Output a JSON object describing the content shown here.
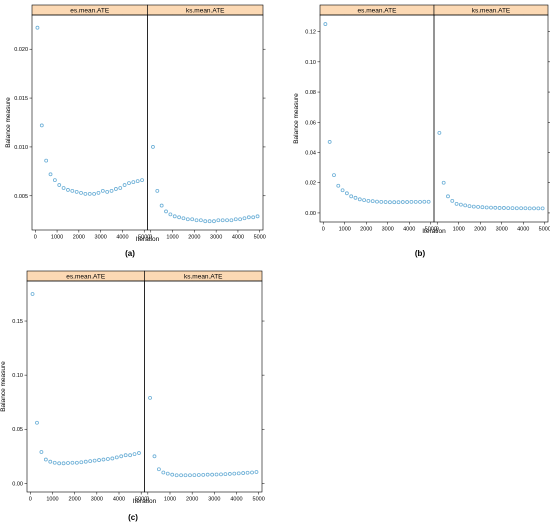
{
  "figure": {
    "panel_labels": [
      "(a)",
      "(b)",
      "(c)"
    ],
    "colors": {
      "points": "#6aaed6",
      "strip_bg": "#fcd9b4",
      "frame": "#000000"
    }
  },
  "chart_data": [
    {
      "type": "scatter",
      "panel": "(a)",
      "xlabel": "Iteration",
      "ylabel": "Balance measure",
      "xlim": [
        -150,
        5150
      ],
      "ylim": [
        0.0015,
        0.0235
      ],
      "x_ticks": [
        0,
        1000,
        2000,
        3000,
        4000,
        5000
      ],
      "y_ticks": [
        0.005,
        0.01,
        0.015,
        0.02
      ],
      "y_tick_labels": [
        "0.005",
        "0.010",
        "0.015",
        "0.020"
      ],
      "grid": false,
      "facets": [
        {
          "strip": "es.mean.ATE",
          "x": [
            100,
            300,
            500,
            700,
            900,
            1100,
            1300,
            1500,
            1700,
            1900,
            2100,
            2300,
            2500,
            2700,
            2900,
            3100,
            3300,
            3500,
            3700,
            3900,
            4100,
            4300,
            4500,
            4700,
            4900
          ],
          "y": [
            0.0222,
            0.0122,
            0.0086,
            0.0072,
            0.0066,
            0.0061,
            0.0058,
            0.0056,
            0.0055,
            0.0054,
            0.0053,
            0.0052,
            0.0052,
            0.0052,
            0.0053,
            0.0055,
            0.0054,
            0.0055,
            0.0057,
            0.0058,
            0.0061,
            0.0063,
            0.0064,
            0.0065,
            0.0066
          ]
        },
        {
          "strip": "ks.mean.ATE",
          "x": [
            100,
            300,
            500,
            700,
            900,
            1100,
            1300,
            1500,
            1700,
            1900,
            2100,
            2300,
            2500,
            2700,
            2900,
            3100,
            3300,
            3500,
            3700,
            3900,
            4100,
            4300,
            4500,
            4700,
            4900
          ],
          "y": [
            0.01,
            0.0055,
            0.004,
            0.0034,
            0.0031,
            0.0029,
            0.0028,
            0.0027,
            0.0026,
            0.0026,
            0.0025,
            0.0025,
            0.0024,
            0.0024,
            0.0024,
            0.0025,
            0.0025,
            0.0025,
            0.0025,
            0.0026,
            0.0026,
            0.0027,
            0.0028,
            0.0028,
            0.0029
          ]
        }
      ]
    },
    {
      "type": "scatter",
      "panel": "(b)",
      "xlabel": "Iteration",
      "ylabel": "Balance measure",
      "xlim": [
        -150,
        5150
      ],
      "ylim": [
        -0.006,
        0.131
      ],
      "x_ticks": [
        0,
        1000,
        2000,
        3000,
        4000,
        5000
      ],
      "y_ticks": [
        0.0,
        0.02,
        0.04,
        0.06,
        0.08,
        0.1,
        0.12
      ],
      "y_tick_labels": [
        "0.00",
        "0.02",
        "0.04",
        "0.06",
        "0.08",
        "0.10",
        "0.12"
      ],
      "grid": false,
      "facets": [
        {
          "strip": "es.mean.ATE",
          "x": [
            100,
            300,
            500,
            700,
            900,
            1100,
            1300,
            1500,
            1700,
            1900,
            2100,
            2300,
            2500,
            2700,
            2900,
            3100,
            3300,
            3500,
            3700,
            3900,
            4100,
            4300,
            4500,
            4700,
            4900
          ],
          "y": [
            0.125,
            0.047,
            0.025,
            0.018,
            0.015,
            0.013,
            0.011,
            0.01,
            0.009,
            0.0085,
            0.008,
            0.0078,
            0.0075,
            0.0073,
            0.0072,
            0.0071,
            0.0071,
            0.0071,
            0.0072,
            0.0072,
            0.0073,
            0.0073,
            0.0073,
            0.0074,
            0.0074
          ]
        },
        {
          "strip": "ks.mean.ATE",
          "x": [
            100,
            300,
            500,
            700,
            900,
            1100,
            1300,
            1500,
            1700,
            1900,
            2100,
            2300,
            2500,
            2700,
            2900,
            3100,
            3300,
            3500,
            3700,
            3900,
            4100,
            4300,
            4500,
            4700,
            4900
          ],
          "y": [
            0.053,
            0.02,
            0.011,
            0.008,
            0.006,
            0.0055,
            0.005,
            0.0045,
            0.0042,
            0.004,
            0.0038,
            0.0036,
            0.0035,
            0.0034,
            0.0033,
            0.0033,
            0.0032,
            0.0032,
            0.0031,
            0.0031,
            0.0031,
            0.003,
            0.003,
            0.003,
            0.003
          ]
        }
      ]
    },
    {
      "type": "scatter",
      "panel": "(c)",
      "xlabel": "Iteration",
      "ylabel": "Balance measure",
      "xlim": [
        -150,
        5150
      ],
      "ylim": [
        -0.008,
        0.187
      ],
      "x_ticks": [
        0,
        1000,
        2000,
        3000,
        4000,
        5000
      ],
      "y_ticks": [
        0.0,
        0.05,
        0.1,
        0.15
      ],
      "y_tick_labels": [
        "0.00",
        "0.05",
        "0.10",
        "0.15"
      ],
      "grid": false,
      "facets": [
        {
          "strip": "es.mean.ATE",
          "x": [
            100,
            300,
            500,
            700,
            900,
            1100,
            1300,
            1500,
            1700,
            1900,
            2100,
            2300,
            2500,
            2700,
            2900,
            3100,
            3300,
            3500,
            3700,
            3900,
            4100,
            4300,
            4500,
            4700,
            4900
          ],
          "y": [
            0.175,
            0.056,
            0.029,
            0.022,
            0.02,
            0.019,
            0.0185,
            0.0185,
            0.0188,
            0.019,
            0.019,
            0.0195,
            0.02,
            0.0205,
            0.021,
            0.0215,
            0.022,
            0.0225,
            0.023,
            0.024,
            0.025,
            0.026,
            0.026,
            0.027,
            0.028
          ]
        },
        {
          "strip": "ks.mean.ATE",
          "x": [
            100,
            300,
            500,
            700,
            900,
            1100,
            1300,
            1500,
            1700,
            1900,
            2100,
            2300,
            2500,
            2700,
            2900,
            3100,
            3300,
            3500,
            3700,
            3900,
            4100,
            4300,
            4500,
            4700,
            4900
          ],
          "y": [
            0.079,
            0.025,
            0.013,
            0.01,
            0.009,
            0.008,
            0.0075,
            0.0075,
            0.0075,
            0.0075,
            0.0076,
            0.0077,
            0.0078,
            0.008,
            0.008,
            0.0082,
            0.0083,
            0.0085,
            0.0087,
            0.009,
            0.0092,
            0.0095,
            0.0098,
            0.01,
            0.0105
          ]
        }
      ]
    }
  ]
}
